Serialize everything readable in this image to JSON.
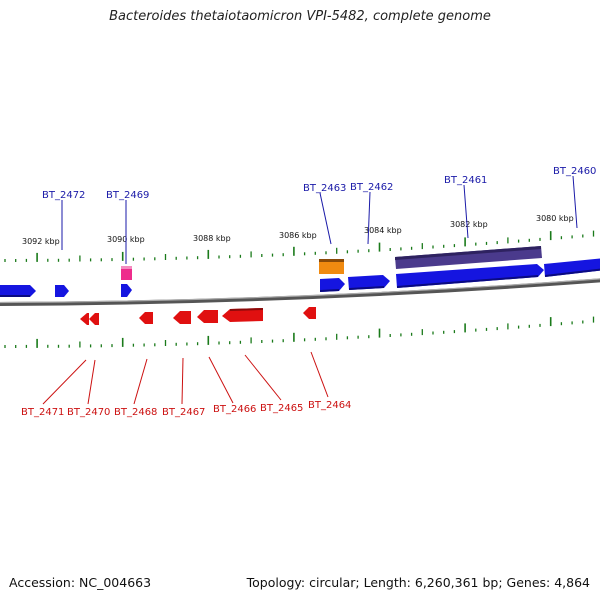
{
  "title": "Bacteroides thetaiotaomicron VPI-5482, complete genome",
  "footer": {
    "accession": "Accession: NC_004663",
    "summary": "Topology: circular; Length: 6,260,361 bp; Genes: 4,864"
  },
  "colors": {
    "forward_gene": "#1515e0",
    "reverse_gene": "#e01010",
    "pink_feature": "#ee2c8c",
    "orange_feature": "#f08a10",
    "purple_feature": "#4a3a8c",
    "tick": "#1a7a1a",
    "backbone": "#777777",
    "top_label": "#1a1aa8",
    "bottom_label": "#cc1111"
  },
  "scale_labels": [
    "3092 kbp",
    "3090 kbp",
    "3088 kbp",
    "3086 kbp",
    "3084 kbp",
    "3082 kbp",
    "3080 kbp"
  ],
  "top_genes": [
    "BT_2472",
    "BT_2469",
    "BT_2463",
    "BT_2462",
    "BT_2461",
    "BT_2460"
  ],
  "bottom_genes": [
    "BT_2471",
    "BT_2470",
    "BT_2468",
    "BT_2467",
    "BT_2466",
    "BT_2465",
    "BT_2464"
  ]
}
